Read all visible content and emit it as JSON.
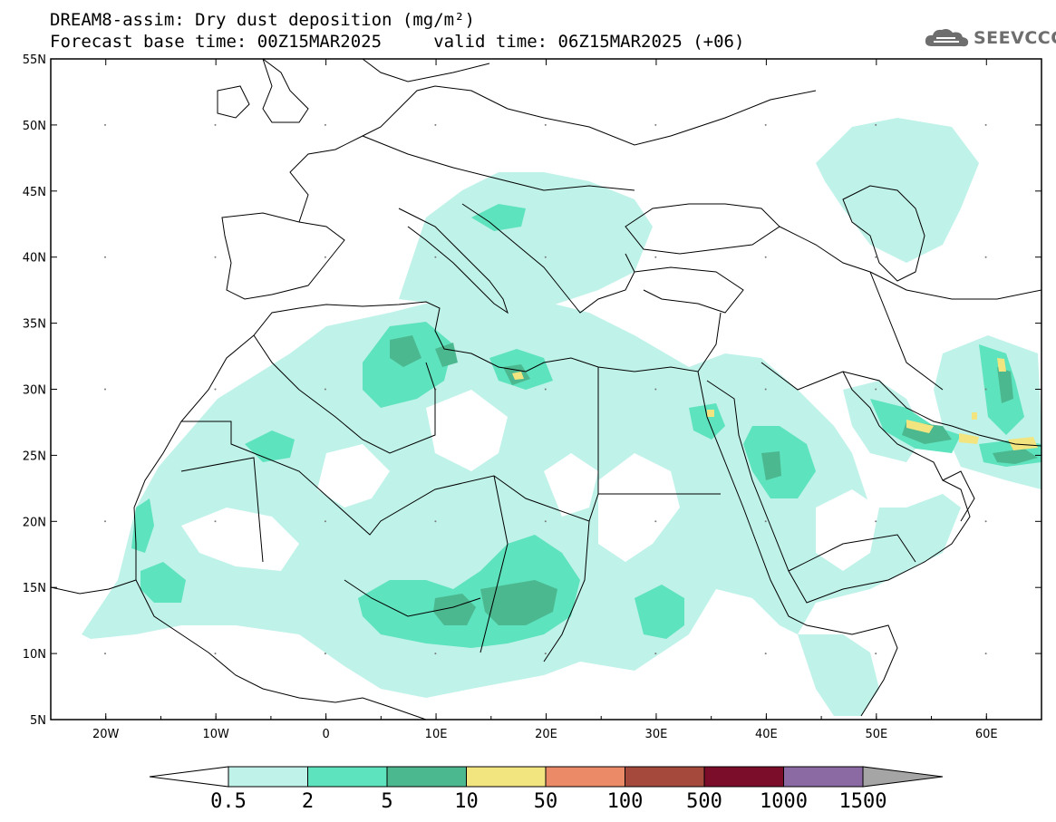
{
  "header": {
    "title_line1": "DREAM8-assim: Dry dust deposition (mg/m²)",
    "title_line2": "Forecast base time: 00Z15MAR2025     valid time: 06Z15MAR2025 (+06)",
    "logo_text": "SEEVCCC",
    "logo_icon": "cloud-icon"
  },
  "map": {
    "lon_range": [
      -25,
      65
    ],
    "lat_range": [
      5,
      55
    ],
    "lat_ticks": [
      "55N",
      "50N",
      "45N",
      "40N",
      "35N",
      "30N",
      "25N",
      "20N",
      "15N",
      "10N",
      "5N"
    ],
    "lon_ticks": [
      "20W",
      "10W",
      "0",
      "10E",
      "20E",
      "30E",
      "40E",
      "50E",
      "60E"
    ]
  },
  "legend": {
    "labels": [
      "0.5",
      "2",
      "5",
      "10",
      "50",
      "100",
      "500",
      "1000",
      "1500"
    ],
    "colors": [
      "#bff2e9",
      "#5de3bd",
      "#4cb890",
      "#f2e57f",
      "#eb8a66",
      "#a4493b",
      "#7c0d2a",
      "#8b6aa3",
      "#a5a5a5"
    ]
  }
}
